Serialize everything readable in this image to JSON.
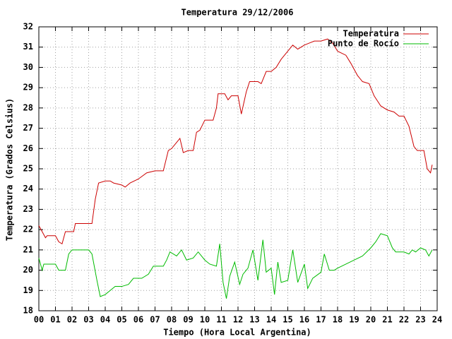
{
  "chart_data": {
    "type": "line",
    "title": "Temperatura 29/12/2006",
    "xlabel": "Tiempo (Hora Local Argentina)",
    "ylabel": "Temperatura (Grados Celsius)",
    "xlim": [
      0,
      24
    ],
    "ylim": [
      18,
      32
    ],
    "xticks": [
      {
        "value": 0,
        "label": "00"
      },
      {
        "value": 1,
        "label": "01"
      },
      {
        "value": 2,
        "label": "02"
      },
      {
        "value": 3,
        "label": "03"
      },
      {
        "value": 4,
        "label": "04"
      },
      {
        "value": 5,
        "label": "05"
      },
      {
        "value": 6,
        "label": "06"
      },
      {
        "value": 7,
        "label": "07"
      },
      {
        "value": 8,
        "label": "08"
      },
      {
        "value": 9,
        "label": "09"
      },
      {
        "value": 10,
        "label": "10"
      },
      {
        "value": 11,
        "label": "11"
      },
      {
        "value": 12,
        "label": "12"
      },
      {
        "value": 13,
        "label": "13"
      },
      {
        "value": 14,
        "label": "14"
      },
      {
        "value": 15,
        "label": "15"
      },
      {
        "value": 16,
        "label": "16"
      },
      {
        "value": 17,
        "label": "17"
      },
      {
        "value": 18,
        "label": "18"
      },
      {
        "value": 19,
        "label": "19"
      },
      {
        "value": 20,
        "label": "20"
      },
      {
        "value": 21,
        "label": "21"
      },
      {
        "value": 22,
        "label": "22"
      },
      {
        "value": 23,
        "label": "23"
      },
      {
        "value": 24,
        "label": "24"
      }
    ],
    "yticks": [
      18,
      19,
      20,
      21,
      22,
      23,
      24,
      25,
      26,
      27,
      28,
      29,
      30,
      31,
      32
    ],
    "grid": true,
    "legend": "top-right",
    "series": [
      {
        "name": "Temperatura",
        "color": "#cc0000",
        "x": [
          0,
          0.2,
          0.4,
          0.5,
          1.0,
          1.2,
          1.4,
          1.6,
          2.1,
          2.2,
          3.0,
          3.2,
          3.4,
          3.6,
          4.0,
          4.3,
          4.5,
          5.0,
          5.2,
          5.5,
          6.0,
          6.5,
          7.0,
          7.5,
          7.8,
          8.0,
          8.3,
          8.5,
          8.7,
          9.0,
          9.3,
          9.5,
          9.7,
          10.0,
          10.5,
          10.7,
          10.8,
          11.0,
          11.2,
          11.4,
          11.6,
          12.0,
          12.2,
          12.5,
          12.7,
          13.2,
          13.4,
          13.7,
          14.0,
          14.3,
          14.6,
          15.0,
          15.3,
          15.6,
          16.0,
          16.3,
          16.6,
          17.0,
          17.4,
          17.7,
          18.0,
          18.5,
          18.8,
          19.2,
          19.5,
          19.9,
          20.2,
          20.6,
          21.0,
          21.4,
          21.7,
          22.0,
          22.3,
          22.6,
          22.8,
          23.2,
          23.4,
          23.6,
          23.7
        ],
        "values": [
          22.2,
          21.9,
          21.6,
          21.7,
          21.7,
          21.4,
          21.3,
          21.9,
          21.9,
          22.3,
          22.3,
          22.3,
          23.5,
          24.3,
          24.4,
          24.4,
          24.3,
          24.2,
          24.1,
          24.3,
          24.5,
          24.8,
          24.9,
          24.9,
          25.9,
          26.0,
          26.3,
          26.5,
          25.8,
          25.9,
          25.9,
          26.8,
          26.9,
          27.4,
          27.4,
          28.0,
          28.7,
          28.7,
          28.7,
          28.4,
          28.6,
          28.6,
          27.7,
          28.8,
          29.3,
          29.3,
          29.2,
          29.8,
          29.8,
          30.0,
          30.4,
          30.8,
          31.1,
          30.9,
          31.1,
          31.2,
          31.3,
          31.3,
          31.4,
          31.2,
          30.8,
          30.6,
          30.2,
          29.6,
          29.3,
          29.2,
          28.6,
          28.1,
          27.9,
          27.8,
          27.6,
          27.6,
          27.1,
          26.1,
          25.9,
          25.9,
          25.0,
          24.8,
          25.2
        ]
      },
      {
        "name": "Punto de Rocío",
        "color": "#00bb00",
        "x": [
          0,
          0.2,
          0.3,
          1.0,
          1.2,
          1.6,
          1.8,
          2.0,
          3.0,
          3.2,
          3.5,
          3.7,
          4.0,
          4.3,
          4.6,
          5.0,
          5.4,
          5.7,
          6.2,
          6.6,
          6.9,
          7.5,
          7.7,
          7.9,
          8.3,
          8.6,
          8.9,
          9.3,
          9.6,
          10.0,
          10.3,
          10.7,
          10.9,
          11.1,
          11.3,
          11.5,
          11.8,
          12.1,
          12.3,
          12.6,
          12.9,
          13.2,
          13.5,
          13.7,
          14.0,
          14.2,
          14.4,
          14.6,
          15.0,
          15.3,
          15.6,
          16.0,
          16.2,
          16.5,
          17.0,
          17.2,
          17.5,
          17.8,
          18.0,
          18.5,
          19.0,
          19.5,
          20.0,
          20.3,
          20.6,
          21.0,
          21.3,
          21.5,
          22.0,
          22.3,
          22.5,
          22.7,
          23.0,
          23.3,
          23.5,
          23.7
        ],
        "values": [
          20.6,
          20.0,
          20.3,
          20.3,
          20.0,
          20.0,
          20.8,
          21.0,
          21.0,
          20.8,
          19.5,
          18.7,
          18.8,
          19.0,
          19.2,
          19.2,
          19.3,
          19.6,
          19.6,
          19.8,
          20.2,
          20.2,
          20.5,
          20.9,
          20.7,
          21.0,
          20.5,
          20.6,
          20.9,
          20.5,
          20.3,
          20.2,
          21.3,
          19.4,
          18.6,
          19.7,
          20.4,
          19.3,
          19.8,
          20.1,
          21.0,
          19.5,
          21.5,
          19.9,
          20.1,
          18.8,
          20.4,
          19.4,
          19.5,
          21.0,
          19.4,
          20.3,
          19.1,
          19.6,
          19.9,
          20.8,
          20.0,
          20.0,
          20.1,
          20.3,
          20.5,
          20.7,
          21.1,
          21.4,
          21.8,
          21.7,
          21.1,
          20.9,
          20.9,
          20.8,
          21.0,
          20.9,
          21.1,
          21.0,
          20.7,
          21.0
        ]
      }
    ]
  }
}
